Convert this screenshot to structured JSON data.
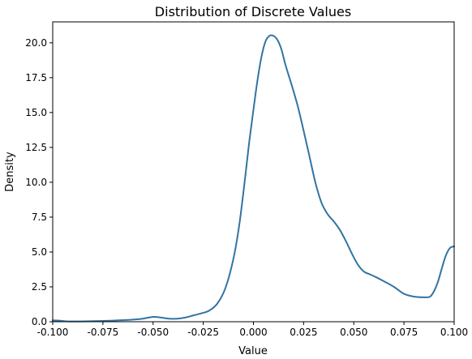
{
  "chart_data": {
    "type": "line",
    "title": "Distribution of Discrete Values",
    "xlabel": "Value",
    "ylabel": "Density",
    "xlim": [
      -0.1,
      0.1
    ],
    "ylim": [
      0,
      21.5
    ],
    "grid": false,
    "legend": "none",
    "line_color": "#3274a1",
    "xticks": [
      -0.1,
      -0.075,
      -0.05,
      -0.025,
      0.0,
      0.025,
      0.05,
      0.075,
      0.1
    ],
    "xtick_labels": [
      "-0.100",
      "-0.075",
      "-0.050",
      "-0.025",
      "0.000",
      "0.025",
      "0.050",
      "0.075",
      "0.100"
    ],
    "yticks": [
      0,
      2.5,
      5,
      7.5,
      10,
      12.5,
      15,
      17.5,
      20
    ],
    "ytick_labels": [
      "0.0",
      "2.5",
      "5.0",
      "7.5",
      "10.0",
      "12.5",
      "15.0",
      "17.5",
      "20.0"
    ],
    "series": [
      {
        "x": [
          -0.1,
          -0.097,
          -0.093,
          -0.088,
          -0.08,
          -0.07,
          -0.06,
          -0.055,
          -0.05,
          -0.046,
          -0.042,
          -0.038,
          -0.034,
          -0.03,
          -0.026,
          -0.022,
          -0.018,
          -0.014,
          -0.01,
          -0.007,
          -0.004,
          -0.002,
          0.0,
          0.002,
          0.004,
          0.006,
          0.008,
          0.01,
          0.012,
          0.014,
          0.016,
          0.019,
          0.022,
          0.025,
          0.028,
          0.031,
          0.034,
          0.037,
          0.04,
          0.043,
          0.046,
          0.049,
          0.052,
          0.055,
          0.058,
          0.061,
          0.065,
          0.07,
          0.075,
          0.08,
          0.085,
          0.088,
          0.09,
          0.092,
          0.094,
          0.096,
          0.098,
          0.1
        ],
        "y": [
          0.1,
          0.08,
          0.03,
          0.02,
          0.04,
          0.08,
          0.15,
          0.22,
          0.35,
          0.3,
          0.22,
          0.22,
          0.3,
          0.45,
          0.6,
          0.8,
          1.3,
          2.4,
          4.5,
          7.0,
          10.5,
          13.0,
          15.2,
          17.3,
          19.0,
          20.1,
          20.5,
          20.5,
          20.2,
          19.5,
          18.4,
          17.0,
          15.5,
          13.7,
          11.8,
          9.9,
          8.5,
          7.7,
          7.2,
          6.6,
          5.8,
          4.9,
          4.1,
          3.6,
          3.4,
          3.2,
          2.9,
          2.5,
          2.0,
          1.8,
          1.75,
          1.8,
          2.2,
          2.9,
          3.9,
          4.8,
          5.3,
          5.4
        ]
      }
    ]
  }
}
